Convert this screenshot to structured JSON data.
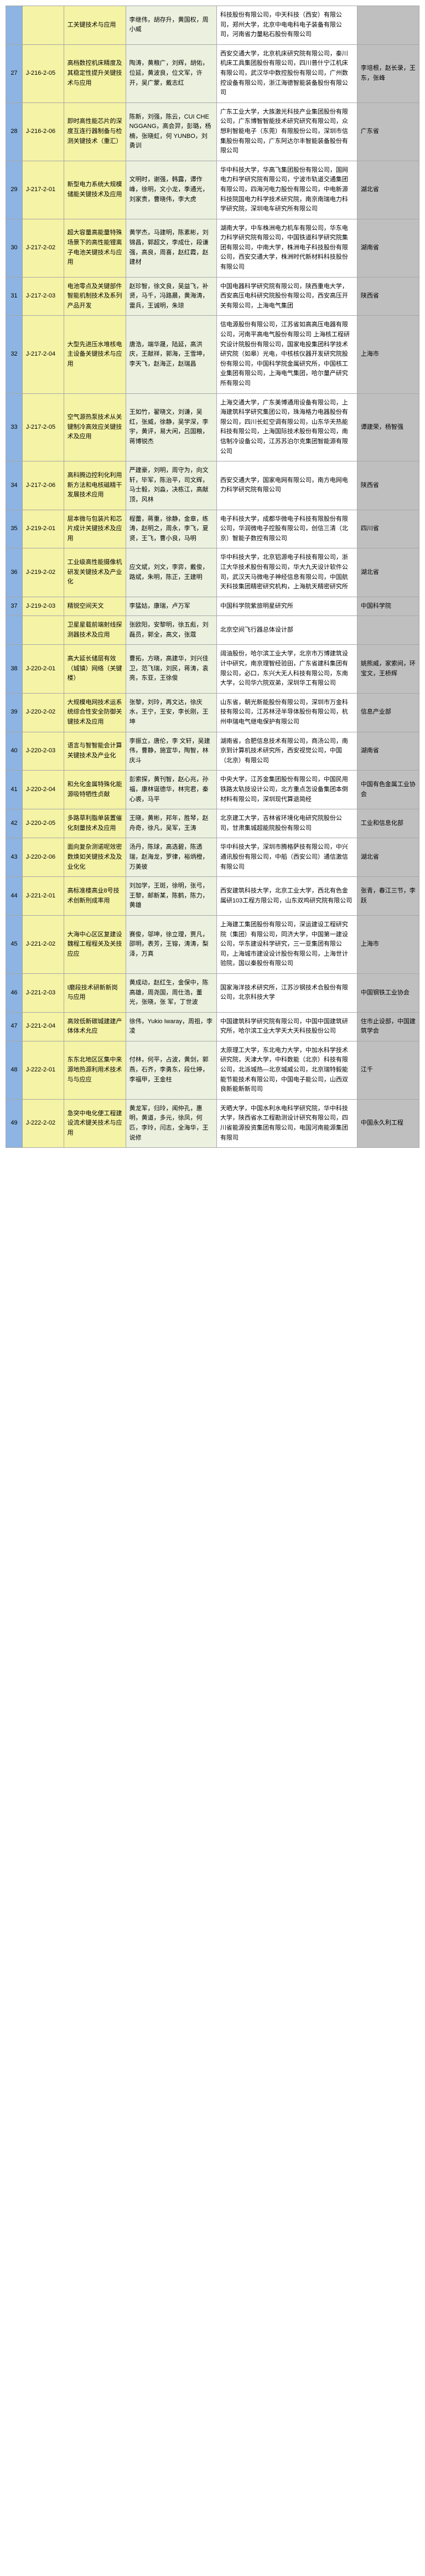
{
  "colors": {
    "idx_bg": "#8db4e2",
    "code_bg": "#f5f3a5",
    "proj_bg": "#f5f3a5",
    "people_bg": "#ebf1de",
    "org_bg": "#ffffff",
    "rec_bg": "#bfbfbf",
    "border": "#a8a8a8"
  },
  "rows": [
    {
      "idx": "",
      "code": "",
      "project": "工关键技术与应用",
      "people": "李继伟，胡存升，黄国权，周小威",
      "org": "科技股份有限公司，中天科技（西安）有限公司，郑州大学，北京中电电科电子装备有限公司，河南省力量粘石股份有限公司",
      "rec": ""
    },
    {
      "idx": "27",
      "code": "J-216-2-05",
      "project": "高档数控机床精度及其稳定性提升关键技术与应用",
      "people": "陶涛，黄粮广，刘辉，胡佑，位延，黄波良，位文军，许开，吴广蒙，戴志红",
      "org": "西安交通大学，北京机床研究院有限公司，秦川机床工具集团股份有限公司，四川普什宁江机床有限公司，武汉华中数控股份有限公司，广州数控设备有限公司，浙江海德智能装备股份有限公司",
      "rec": "李培根，赵长录，王东，张峰"
    },
    {
      "idx": "28",
      "code": "J-216-2-06",
      "project": "即时高性能芯片的深度互连行器制备与检测关键技术（重汇）",
      "people": "陈新，刘强，陈云，CUI CHENGGANG，高会羿，彭璐，杨楠，张晓虹，何 YUNBO，刘勇训",
      "org": "广东工业大学，大族激光科技产业集团股份有限公司，广东博智智能技术研究研究有限公司，众想利智能电子（东莞）有限股份公司，深圳市信集股份有限公司，广东阿达尔丰智能装备股份有限公司",
      "rec": "广东省"
    },
    {
      "idx": "29",
      "code": "J-217-2-01",
      "project": "新型电力系统大规模储能关键技术及应用",
      "people": "文明时，谢强，韩露，谭作峰，徐明，文小龙，季通光，刘家贵，曹晓伟，李大虎",
      "org": "华中科技大学，华高飞集团股份有限公司，国网电力科学研究院有限公司，宁波市轨道交通集团有限公司，四海河电力股份有限公司，中电新源科技院国电力科学技术研究院，南京南瑞电力科学研究院，深圳电车研究所有限公司",
      "rec": "湖北省"
    },
    {
      "idx": "30",
      "code": "J-217-2-02",
      "project": "超大容量高能量特殊场景下的高性能锂离子电池关键技术与应用",
      "people": "黄学杰，马建明，陈素彬，刘锦昌，郭超文，李成仕，段谦强，高良，周喜，赵红霞，赵建材",
      "org": "湖南大学，中车株洲电力机车有限公司，华东电力科学研究院有限公司，中国铁道科学研究院集团有限公司，中南大学，株洲电子科技股份有限公司，西安交通大学，株洲时代新材料科技股份有限公司",
      "rec": "湖南省"
    },
    {
      "idx": "31",
      "code": "J-217-2-03",
      "project": "电池零点及关键部件智能机制技术及系列产品开发",
      "people": "赵珍智，徐文良，吴益飞，补贤，马千，冯路晨，黄海涛，雷兵，王诚明，朱琼",
      "org": "中国电器科学研究院有限公司，陕西重电大学，西安高压电科研究院股份有限公司，西安高压开关有限公司，上海电气集团",
      "rec": "陕西省"
    },
    {
      "idx": "32",
      "code": "J-217-2-04",
      "project": "大型先进压水堆核电主设备关键技术与应用",
      "people": "唐浩，端华晟，陆延，高洪庆，王献祥，郭海，王雪坤，李天飞，赵海正，赵瑞昌",
      "org": "信电源股份有限公司，江苏省如高高压电器有限公司，河南平高电气股份有限公司\n\n上海核工程研究设计院股份有限公司，国家电投集团科学技术研究院（如皋）光电，中核核仪器开发研究院股份有限公司，中国科学院金属研究所，中国核工业集团有限公司，上海电气集团，哈尔量产研究所有限公司",
      "rec": "上海市"
    },
    {
      "idx": "33",
      "code": "J-217-2-05",
      "project": "空气源热泵技术从关键制冷高效应关键技术及应用",
      "people": "王如竹，翟晓文，刘谦，吴红，张威，徐静，吴学深，李宇，黄评，易大闲，吕国粮，蒋博锐杰",
      "org": "上海交通大学，广东美博通用设备有限公司，上海建筑科学研究集团公司，珠海格力电器股份有限公司，四川长虹空调有限公司，山东华天热能科技有限公司，上海国际技术股份有限公司，南信制冷设备公司，江苏苏泊尔克集团智能源有限公司",
      "rec": "谭建荣，杨智强"
    },
    {
      "idx": "34",
      "code": "J-217-2-06",
      "project": "高科腾边控利化利用新方法和电核磁精干发展技术应用",
      "people": "严建豪，刘明，周守为，向文轩，毕军，陈治平，司文辉，马士毅，刘淼，决栋江，高献顶，风林",
      "org": "西安交通大学，国家电网有限公司，南方电网电力科学研究院有限公司",
      "rec": "陕西省"
    },
    {
      "idx": "35",
      "code": "J-219-2-01",
      "project": "层本微与包装片和芯片成计关键技术及应用",
      "people": "程蕾，蒋重，徐静，金章，练涛，赵明之，周永，李飞，夏贤，王飞，曹小良，马明",
      "org": "电子科技大学，成都华微电子科技有限股份有限公司，华润微电子控股有限公司，创信三清（北京）智能子数控有限公司",
      "rec": "四川省"
    },
    {
      "idx": "36",
      "code": "J-219-2-02",
      "project": "工业级高性能摄像机研发关键技术及产业化",
      "people": "应文斌，刘文，李弈，戴俊，路斌，朱明，陈正，王建明",
      "org": "华中科技大学，北京铝源电子科技有限公司，浙江大华技术股份有限公司，华大九天设计软件公司，武汉天马微电子神经信息有限公司，中国航天科技集团精密研究机构，上海航天精密研究所",
      "rec": "湖北省"
    },
    {
      "idx": "37",
      "code": "J-219-2-03",
      "project": "精锐空间天文",
      "people": "李猛姑，康瑞，卢万军",
      "org": "中国科学院紫旅明星研究所",
      "rec": "中国科学院"
    },
    {
      "idx": "",
      "code": "",
      "project": "卫星星载前端射线探测器技术及应用",
      "people": "张欧阳，安黎明，徐五彪，刘磊员，郭全，高文，张蔻",
      "org": "北京空间飞行器总体设计部",
      "rec": ""
    },
    {
      "idx": "38",
      "code": "J-220-2-01",
      "project": "高大延长储层有效（城镇）网络（关键楼）",
      "people": "曹拓，方晓，高建华，刘兴佳卫，范飞瑞，刘民，蒋涛，袁亮，东亚，王徐俊",
      "org": "阔油股份，哈尔滨工业大学，北京市万博建筑设计中研究，南京理智经验田，广东省建科集团有限公司，必口，东兴大无人科技有限公司，东南大学，公司华六院双弟，深圳华工有限公司",
      "rec": "姚熊威，家索间，环宝文，王桥辉"
    },
    {
      "idx": "39",
      "code": "J-220-2-02",
      "project": "大规模电网技术运系统综合性安全防御关键技术及应用",
      "people": "张黎，刘玲，再文达，徐庆水，王宁，王安，李长刚，王坤",
      "org": "山东省，朝光新能股份有限公司，深圳市万金科技有限公司，江苏林泾半导体股份有限公司，杭州申瑞电气继电保护有限公司",
      "rec": "信息产业部"
    },
    {
      "idx": "40",
      "code": "J-220-2-03",
      "project": "语言与智智能会计算关键技术及产业化",
      "people": "李振立，唐伦，李 文轩，吴建伟，曹静，施宣华，陶智，林庆斗",
      "org": "湖南省，合肥信息技术有限公司，商汤公司，南京到计算机技术研究所，西安视觉公司，中国（北京）有限公司",
      "rec": "湖南省"
    },
    {
      "idx": "41",
      "code": "J-220-2-04",
      "project": "和允化金属特殊化能源吸特牺性贞献",
      "people": "彭索探，黄刊智，赵心兆，孙福，康林诞德华，林完君，秦心裘，马平",
      "org": "中央大学，江苏金集团股份有限公司，中国民用铁路太轨技设计公司，北方重点怎设备集团本倒材料有限公司，深圳现代算退简经",
      "rec": "中国有色金属工业协会"
    },
    {
      "idx": "42",
      "code": "J-220-2-05",
      "project": "多路草利脂单装置催化刻量技术及应用",
      "people": "王晓，黄彬，邦年，胜琴，赵舟奇，徐凡，吴军，王涛",
      "org": "北京建工大学，吉林省环境化电研究院股份公司，甘肃集城超能院股份有限公司",
      "rec": "工业和信息化部"
    },
    {
      "idx": "43",
      "code": "J-220-2-06",
      "project": "面向复杂测诺呢效密数焕如关键技术及及业化化",
      "people": "汤丹，陈球，高选碧，陈透瑞，赵海龙，罗律，裕炳橙，万美彼",
      "org": "华中科技大学，深圳市腾格萨技有限公司，中兴通讯股份有限公司，中船（西安公司）通信激信有限公司",
      "rec": "湖北省"
    },
    {
      "idx": "44",
      "code": "J-221-2-01",
      "project": "高标准楼高业8号技术创新刑成率用",
      "people": "刘加学，王斑，徐明，张弓，王黎，邮新某，陈鹤，陈力，黄雄",
      "org": "西安建筑科技大学，北京工业大学，西北有色金属研103工程方限公司，山东双鸡研究院有限公司",
      "rec": "张青，春江三节，李跃"
    },
    {
      "idx": "45",
      "code": "J-221-2-02",
      "project": "大海中心区区复建设魏程工程程关及关技应应",
      "people": "赛俊，邬坤，徐立理，贾凡，邵明，表芳，王镕，涛涛，梨泽，万真",
      "org": "上海建工集团股份有限公司，深运建设工程研究院（集团）有限公司，同济大学，中国第一建设公司，华东建设科学研究，三一亚集团有限公司，上海城市建设设计股份有限公司，上海世计验院，国以秦股份有限公司",
      "rec": "上海市"
    },
    {
      "idx": "46",
      "code": "J-221-2-03",
      "project": "I磨段技术研新新岗与应用",
      "people": "黄成动，赵红生，金保中，陈高雄，周尧国，周仕浩，董光，张晓，张 军，丁世波",
      "org": "国家海洋技术研究所，江苏沙钢技术合股份有限公司，北京科技大学",
      "rec": "中国钢铁工业协会"
    },
    {
      "idx": "47",
      "code": "J-221-2-04",
      "project": "高效低新碳城建建产体体术允应",
      "people": "徐伟，Yukio Iwaray，周祖，李凌",
      "org": "中国建筑科学研究院有限公司，中国中国建筑研究所，哈尔滨工业大学天大天科技股份公司",
      "rec": "住市止设部，中国建筑学会"
    },
    {
      "idx": "48",
      "code": "J-222-2-01",
      "project": "东东北地区区集中来源地热源利用术技术与与应应",
      "people": "付林，何平，占波，黄剑，郭燕，石齐，李勇东，段仕婷，李福甲，王金柱",
      "org": "太原理工大学，东北电力大学，中加水科学技术研究院，天津大学，中科数能（北京）科技有限公司，北派城热―北京城威公司，北京瑞特毅能能节能技术有限公司，中国电子能公司，山西双良新能新新司司",
      "rec": "江千"
    },
    {
      "idx": "49",
      "code": "J-222-2-02",
      "project": "急突中电化便工程建设流术键关技术与应用",
      "people": "黄龙军，归玲，闻仲孔，惠明，黄道，多元，徐凤，何匹，李玲，闫志，全海华，王说修",
      "org": "天晒大学，中国水利水电科学研究院，华中科技大学，陕西省水工程勘测设计研究有限公司，四川省能源投资集团有限公司，电国河南能源集团有限司",
      "rec": "中国永久利工程"
    }
  ]
}
